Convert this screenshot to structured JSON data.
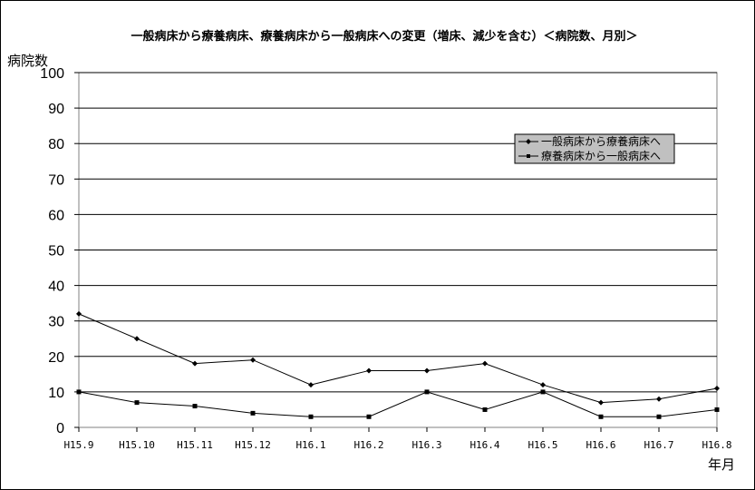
{
  "chart_data": {
    "type": "line",
    "title": "一般病床から療養病床、療養病床から一般病床への変更（増床、減少を含む）＜病院数、月別＞",
    "ylabel": "病院数",
    "xlabel": "年月",
    "ylim": [
      0,
      100
    ],
    "yticks": [
      0,
      10,
      20,
      30,
      40,
      50,
      60,
      70,
      80,
      90,
      100
    ],
    "grid": true,
    "legend_position": "right",
    "categories": [
      "H15.9",
      "H15.10",
      "H15.11",
      "H15.12",
      "H16.1",
      "H16.2",
      "H16.3",
      "H16.4",
      "H16.5",
      "H16.6",
      "H16.7",
      "H16.8"
    ],
    "series": [
      {
        "name": "一般病床から療養病床へ",
        "marker": "diamond",
        "color": "#000000",
        "values": [
          32,
          25,
          18,
          19,
          12,
          16,
          16,
          18,
          12,
          7,
          8,
          11
        ]
      },
      {
        "name": "療養病床から一般病床へ",
        "marker": "square",
        "color": "#000000",
        "values": [
          10,
          7,
          6,
          4,
          3,
          3,
          10,
          5,
          10,
          3,
          3,
          5
        ]
      }
    ]
  }
}
